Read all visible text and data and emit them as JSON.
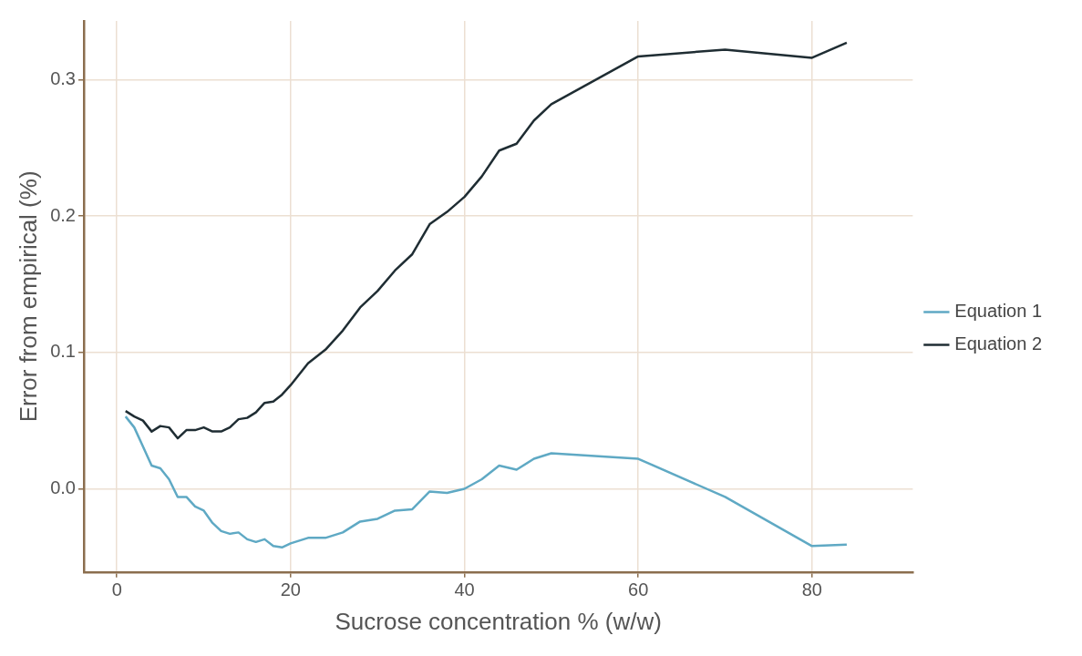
{
  "chart_data": {
    "type": "line",
    "xlabel": "Sucrose concentration % (w/w)",
    "ylabel": "Error from empirical (%)",
    "xlim": [
      -3.8,
      91.6
    ],
    "ylim": [
      -0.061,
      0.343
    ],
    "xticks": [
      0,
      20,
      40,
      60,
      80
    ],
    "yticks": [
      {
        "value": 0,
        "label": "0.0"
      },
      {
        "value": 0.1,
        "label": "0.1"
      },
      {
        "value": 0.2,
        "label": "0.2"
      },
      {
        "value": 0.3,
        "label": "0.3"
      }
    ],
    "x": [
      1,
      2,
      3,
      4,
      5,
      6,
      7,
      8,
      9,
      10,
      11,
      12,
      13,
      14,
      15,
      16,
      17,
      18,
      19,
      20,
      22,
      24,
      26,
      28,
      30,
      32,
      34,
      36,
      38,
      40,
      42,
      44,
      46,
      48,
      50,
      60,
      70,
      80,
      84
    ],
    "series": [
      {
        "name": "Equation 1",
        "color": "#5fa9c4",
        "values": [
          0.053,
          0.045,
          0.031,
          0.017,
          0.015,
          0.007,
          -0.006,
          -0.006,
          -0.013,
          -0.016,
          -0.025,
          -0.031,
          -0.033,
          -0.032,
          -0.037,
          -0.039,
          -0.037,
          -0.042,
          -0.043,
          -0.04,
          -0.036,
          -0.036,
          -0.032,
          -0.024,
          -0.022,
          -0.016,
          -0.015,
          -0.002,
          -0.003,
          0.0,
          0.007,
          0.017,
          0.014,
          0.022,
          0.026,
          0.022,
          -0.006,
          -0.042,
          -0.041
        ]
      },
      {
        "name": "Equation 2",
        "color": "#1f2d33",
        "values": [
          0.057,
          0.053,
          0.05,
          0.042,
          0.046,
          0.045,
          0.037,
          0.043,
          0.043,
          0.045,
          0.042,
          0.042,
          0.045,
          0.051,
          0.052,
          0.056,
          0.063,
          0.064,
          0.069,
          0.076,
          0.092,
          0.102,
          0.116,
          0.133,
          0.145,
          0.16,
          0.172,
          0.194,
          0.203,
          0.214,
          0.229,
          0.248,
          0.253,
          0.27,
          0.282,
          0.317,
          0.322,
          0.316,
          0.327
        ]
      }
    ],
    "grid": true,
    "legend": "right",
    "marker": "none",
    "line_style": "solid"
  }
}
